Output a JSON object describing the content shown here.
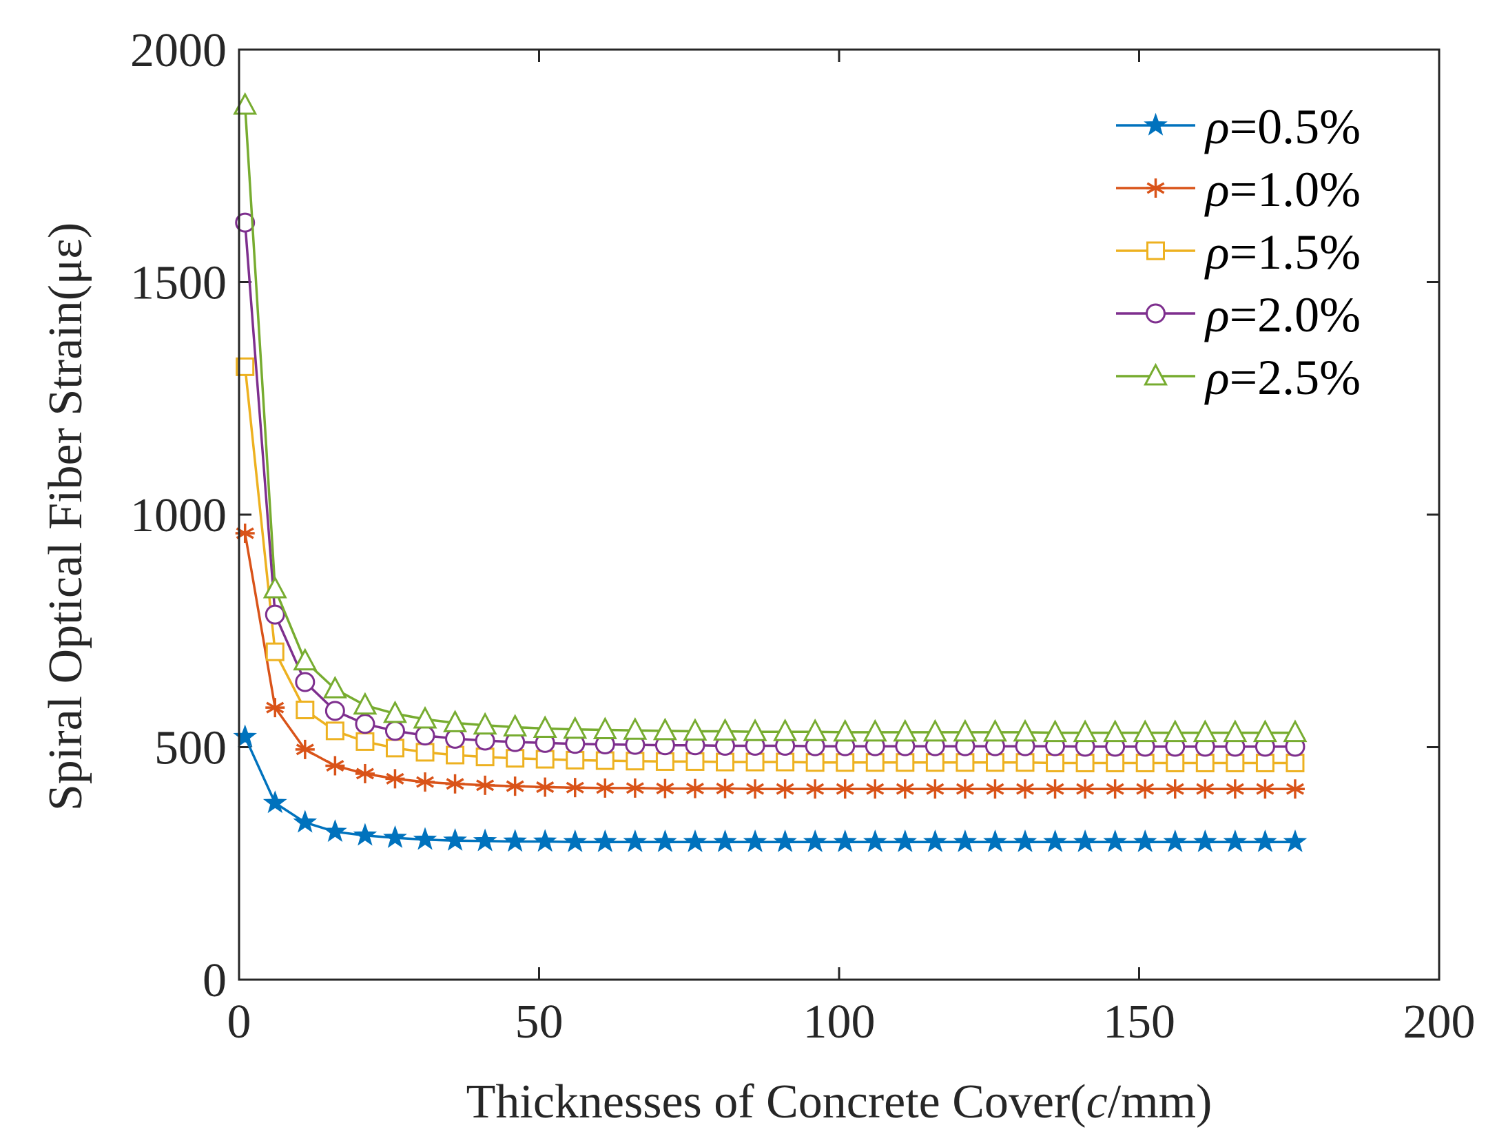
{
  "chart_data": {
    "type": "line",
    "title": "",
    "xlabel_prefix": "Thicknesses of Concrete Cover(",
    "xlabel_var": "c",
    "xlabel_suffix": "/mm)",
    "ylabel": "Spiral Optical Fiber Strain(με)",
    "xlim": [
      0,
      200
    ],
    "ylim": [
      0,
      2000
    ],
    "xticks": [
      0,
      50,
      100,
      150,
      200
    ],
    "yticks": [
      0,
      500,
      1000,
      1500,
      2000
    ],
    "xtick_labels": [
      "0",
      "50",
      "100",
      "150",
      "200"
    ],
    "ytick_labels": [
      "0",
      "500",
      "1000",
      "1500",
      "2000"
    ],
    "grid": false,
    "legend_position": "top-right",
    "x": [
      1,
      6,
      11,
      16,
      21,
      26,
      31,
      36,
      41,
      46,
      51,
      56,
      61,
      66,
      71,
      76,
      81,
      86,
      91,
      96,
      101,
      106,
      111,
      116,
      121,
      126,
      131,
      136,
      141,
      146,
      151,
      156,
      161,
      166,
      171,
      176
    ],
    "series": [
      {
        "name": "=0.5%",
        "symbol": "ρ",
        "color": "#0072BD",
        "marker": "star",
        "values": [
          522,
          380,
          338,
          318,
          310,
          305,
          301,
          299,
          298,
          297,
          297,
          296,
          296,
          296,
          296,
          296,
          296,
          296,
          296,
          296,
          296,
          296,
          296,
          296,
          296,
          296,
          296,
          296,
          296,
          296,
          296,
          296,
          296,
          296,
          296,
          296
        ]
      },
      {
        "name": "=1.0%",
        "symbol": "ρ",
        "color": "#D95319",
        "marker": "asterisk",
        "values": [
          960,
          585,
          495,
          460,
          443,
          432,
          425,
          421,
          418,
          416,
          414,
          413,
          412,
          412,
          411,
          411,
          411,
          410,
          410,
          410,
          410,
          410,
          410,
          410,
          410,
          410,
          410,
          410,
          410,
          410,
          410,
          410,
          410,
          410,
          410,
          410
        ]
      },
      {
        "name": "=1.5%",
        "symbol": "ρ",
        "color": "#EDB120",
        "marker": "square",
        "values": [
          1318,
          705,
          580,
          535,
          512,
          498,
          489,
          483,
          479,
          476,
          474,
          472,
          471,
          470,
          469,
          469,
          468,
          468,
          468,
          467,
          467,
          467,
          467,
          467,
          467,
          467,
          467,
          466,
          466,
          466,
          466,
          466,
          466,
          466,
          466,
          466
        ]
      },
      {
        "name": "=2.0%",
        "symbol": "ρ",
        "color": "#7E2F8E",
        "marker": "circle",
        "values": [
          1628,
          785,
          640,
          578,
          550,
          535,
          525,
          518,
          514,
          511,
          509,
          507,
          506,
          505,
          504,
          504,
          503,
          503,
          503,
          502,
          502,
          502,
          502,
          502,
          502,
          502,
          502,
          502,
          501,
          501,
          501,
          501,
          501,
          501,
          501,
          501
        ]
      },
      {
        "name": "=2.5%",
        "symbol": "ρ",
        "color": "#77AC30",
        "marker": "triangle",
        "values": [
          1880,
          840,
          685,
          625,
          590,
          572,
          560,
          552,
          547,
          543,
          540,
          538,
          537,
          536,
          535,
          534,
          534,
          533,
          533,
          533,
          532,
          532,
          532,
          532,
          532,
          532,
          532,
          531,
          531,
          531,
          531,
          531,
          531,
          531,
          531,
          531
        ]
      }
    ]
  }
}
